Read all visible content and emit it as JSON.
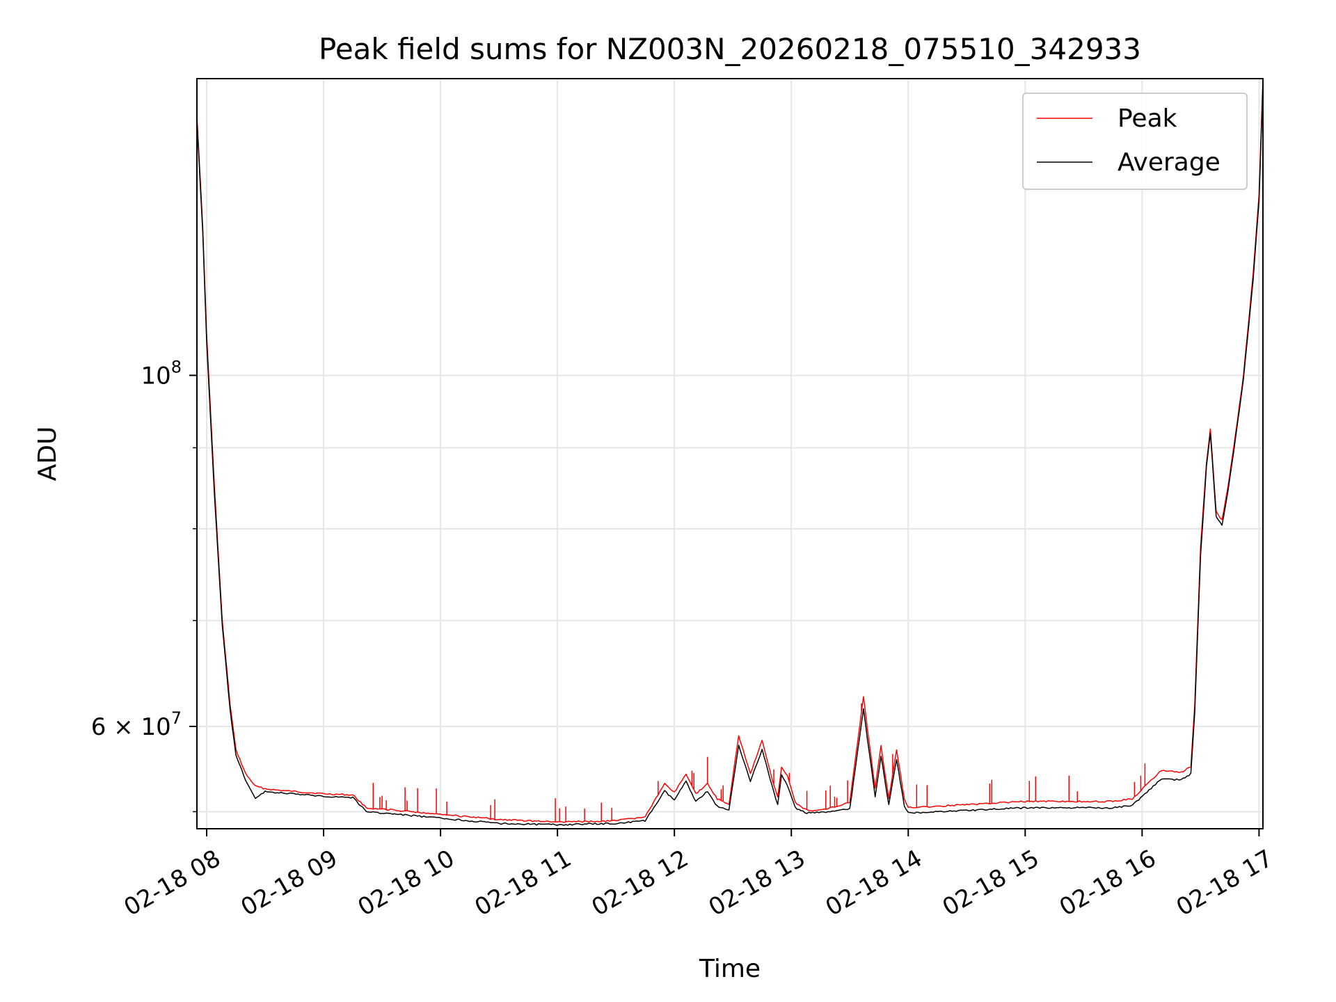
{
  "chart_data": {
    "type": "line",
    "title": "Peak field sums for NZ003N_20260218_075510_342933",
    "xlabel": "Time",
    "ylabel": "ADU",
    "y_scale": "log",
    "ylim": [
      51700000,
      154000000
    ],
    "xlim": [
      "2026-02-18 07:55",
      "2026-02-18 17:02"
    ],
    "grid": true,
    "legend_position": "upper right",
    "x_ticks": [
      "2026-02-18 08:00",
      "2026-02-18 09:00",
      "2026-02-18 10:00",
      "2026-02-18 11:00",
      "2026-02-18 12:00",
      "2026-02-18 13:00",
      "2026-02-18 14:00",
      "2026-02-18 15:00",
      "2026-02-18 16:00",
      "2026-02-18 17:00"
    ],
    "x_tick_labels": [
      "02-18 08",
      "02-18 09",
      "02-18 10",
      "02-18 11",
      "02-18 12",
      "02-18 13",
      "02-18 14",
      "02-18 15",
      "02-18 16",
      "02-18 17"
    ],
    "y_major_ticks": [
      {
        "value": 60000000,
        "base": "6 × 10",
        "exp": "7"
      },
      {
        "value": 100000000,
        "base": "10",
        "exp": "8"
      }
    ],
    "y_minor_ticks": [
      53000000,
      70000000,
      80000000,
      90000000
    ],
    "series": [
      {
        "name": "Peak",
        "color": "#ff0000",
        "spikes": true,
        "x": [
          "2026-02-18 07:55",
          "2026-02-18 07:58",
          "2026-02-18 08:00",
          "2026-02-18 08:04",
          "2026-02-18 08:08",
          "2026-02-18 08:12",
          "2026-02-18 08:15",
          "2026-02-18 08:20",
          "2026-02-18 08:25",
          "2026-02-18 08:30",
          "2026-02-18 08:35",
          "2026-02-18 09:00",
          "2026-02-18 09:15",
          "2026-02-18 09:22",
          "2026-02-18 09:30",
          "2026-02-18 10:00",
          "2026-02-18 10:30",
          "2026-02-18 11:00",
          "2026-02-18 11:30",
          "2026-02-18 11:45",
          "2026-02-18 11:55",
          "2026-02-18 12:00",
          "2026-02-18 12:06",
          "2026-02-18 12:11",
          "2026-02-18 12:17",
          "2026-02-18 12:22",
          "2026-02-18 12:28",
          "2026-02-18 12:33",
          "2026-02-18 12:39",
          "2026-02-18 12:45",
          "2026-02-18 12:50",
          "2026-02-18 12:53",
          "2026-02-18 12:55",
          "2026-02-18 12:58",
          "2026-02-18 13:02",
          "2026-02-18 13:08",
          "2026-02-18 13:12",
          "2026-02-18 13:20",
          "2026-02-18 13:30",
          "2026-02-18 13:37",
          "2026-02-18 13:43",
          "2026-02-18 13:46",
          "2026-02-18 13:50",
          "2026-02-18 13:54",
          "2026-02-18 13:58",
          "2026-02-18 14:00",
          "2026-02-18 15:00",
          "2026-02-18 15:45",
          "2026-02-18 15:55",
          "2026-02-18 16:10",
          "2026-02-18 16:20",
          "2026-02-18 16:25",
          "2026-02-18 16:27",
          "2026-02-18 16:30",
          "2026-02-18 16:33",
          "2026-02-18 16:35",
          "2026-02-18 16:38",
          "2026-02-18 16:41",
          "2026-02-18 16:44",
          "2026-02-18 16:47",
          "2026-02-18 16:52",
          "2026-02-18 16:57",
          "2026-02-18 17:00",
          "2026-02-18 17:02"
        ],
        "y": [
          146000000,
          124000000,
          106000000,
          85000000,
          70000000,
          62000000,
          58000000,
          56000000,
          55000000,
          54800000,
          54700000,
          54400000,
          54300000,
          53300000,
          53200000,
          52800000,
          52400000,
          52200000,
          52300000,
          52600000,
          55200000,
          54500000,
          56000000,
          54400000,
          55200000,
          54000000,
          53600000,
          59200000,
          56000000,
          58800000,
          55700000,
          54100000,
          56500000,
          55800000,
          53700000,
          53100000,
          53100000,
          53300000,
          53700000,
          62600000,
          54800000,
          58300000,
          54000000,
          58000000,
          54000000,
          53300000,
          53800000,
          53800000,
          54000000,
          56300000,
          56100000,
          56600000,
          62000000,
          78000000,
          88000000,
          92500000,
          82000000,
          81000000,
          85000000,
          90000000,
          100000000,
          116000000,
          130000000,
          154000000
        ]
      },
      {
        "name": "Average",
        "color": "#000000",
        "spikes": false,
        "x": [
          "2026-02-18 07:55",
          "2026-02-18 07:58",
          "2026-02-18 08:00",
          "2026-02-18 08:04",
          "2026-02-18 08:08",
          "2026-02-18 08:12",
          "2026-02-18 08:15",
          "2026-02-18 08:20",
          "2026-02-18 08:25",
          "2026-02-18 08:30",
          "2026-02-18 08:35",
          "2026-02-18 09:00",
          "2026-02-18 09:15",
          "2026-02-18 09:22",
          "2026-02-18 09:30",
          "2026-02-18 10:00",
          "2026-02-18 10:30",
          "2026-02-18 11:00",
          "2026-02-18 11:30",
          "2026-02-18 11:45",
          "2026-02-18 11:55",
          "2026-02-18 12:00",
          "2026-02-18 12:06",
          "2026-02-18 12:11",
          "2026-02-18 12:17",
          "2026-02-18 12:22",
          "2026-02-18 12:28",
          "2026-02-18 12:33",
          "2026-02-18 12:39",
          "2026-02-18 12:45",
          "2026-02-18 12:50",
          "2026-02-18 12:53",
          "2026-02-18 12:55",
          "2026-02-18 12:58",
          "2026-02-18 13:02",
          "2026-02-18 13:08",
          "2026-02-18 13:12",
          "2026-02-18 13:20",
          "2026-02-18 13:30",
          "2026-02-18 13:37",
          "2026-02-18 13:43",
          "2026-02-18 13:46",
          "2026-02-18 13:50",
          "2026-02-18 13:54",
          "2026-02-18 13:58",
          "2026-02-18 14:00",
          "2026-02-18 15:00",
          "2026-02-18 15:45",
          "2026-02-18 15:55",
          "2026-02-18 16:10",
          "2026-02-18 16:20",
          "2026-02-18 16:25",
          "2026-02-18 16:27",
          "2026-02-18 16:30",
          "2026-02-18 16:33",
          "2026-02-18 16:35",
          "2026-02-18 16:38",
          "2026-02-18 16:41",
          "2026-02-18 16:44",
          "2026-02-18 16:47",
          "2026-02-18 16:52",
          "2026-02-18 16:57",
          "2026-02-18 17:00",
          "2026-02-18 17:02"
        ],
        "y": [
          145000000,
          123000000,
          105000000,
          84000000,
          69500000,
          61500000,
          57500000,
          55500000,
          54000000,
          54600000,
          54500000,
          54200000,
          54100000,
          53000000,
          52900000,
          52500000,
          52100000,
          52000000,
          52100000,
          52300000,
          54600000,
          53900000,
          55400000,
          53800000,
          54600000,
          53400000,
          53100000,
          58400000,
          55400000,
          58000000,
          55100000,
          53500000,
          55900000,
          55100000,
          53300000,
          52900000,
          52900000,
          53000000,
          53200000,
          61500000,
          54200000,
          57500000,
          53500000,
          57200000,
          53400000,
          52900000,
          53300000,
          53300000,
          53500000,
          55600000,
          55500000,
          56000000,
          61300000,
          77000000,
          87500000,
          92000000,
          81500000,
          80400000,
          84500000,
          89500000,
          99500000,
          115000000,
          129000000,
          153000000
        ]
      }
    ]
  }
}
